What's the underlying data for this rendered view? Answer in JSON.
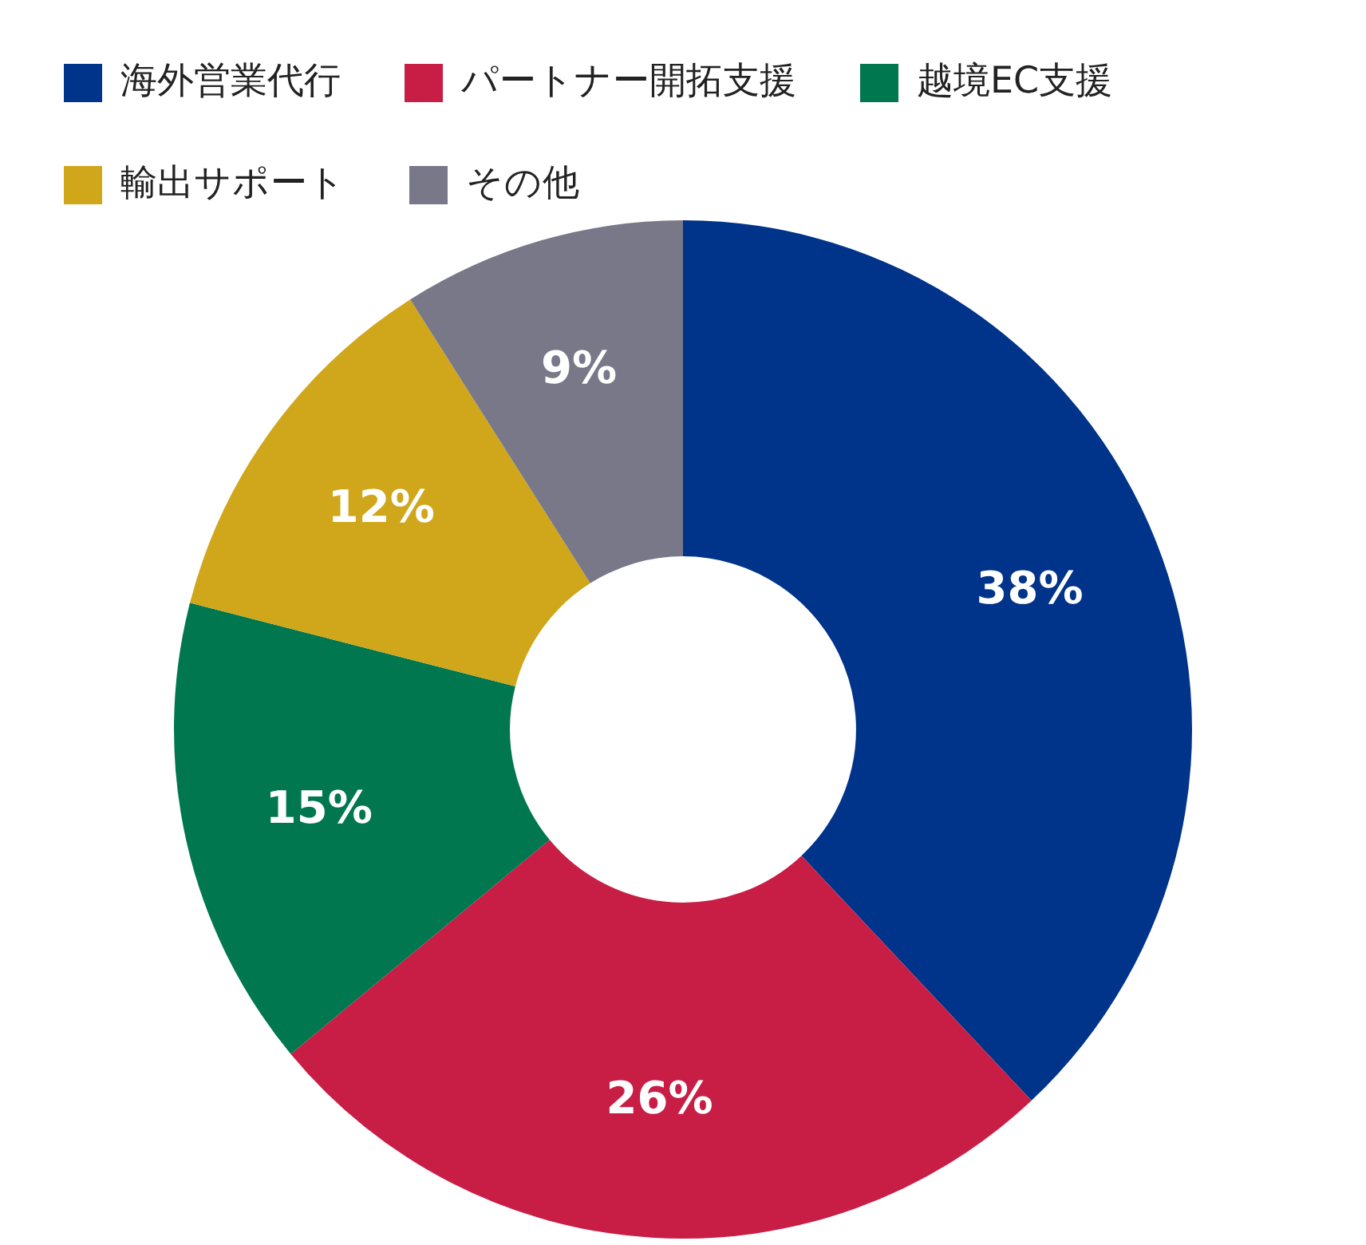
{
  "chart_data": {
    "type": "donut",
    "categories": [
      "海外営業代行",
      "パートナー開拓支援",
      "越境EC支援",
      "輸出サポート",
      "その他"
    ],
    "values": [
      38,
      26,
      15,
      12,
      9
    ],
    "colors": [
      "#00338a",
      "#c81e45",
      "#00774f",
      "#d0a61a",
      "#787888"
    ],
    "value_labels": [
      "38%",
      "26%",
      "15%",
      "12%",
      "9%"
    ],
    "legend": "top left"
  }
}
